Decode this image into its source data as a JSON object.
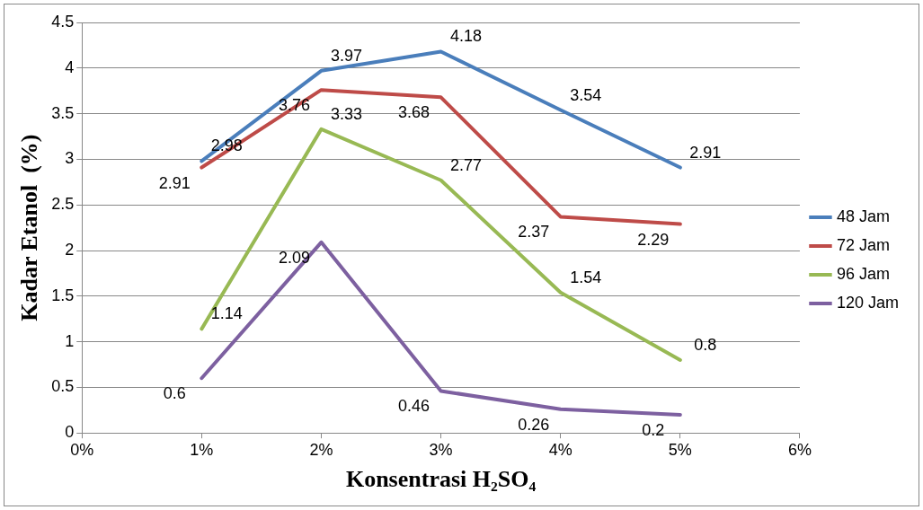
{
  "chart_data": {
    "type": "line",
    "xlabel": "Konsentrasi H₂SO₄",
    "ylabel": "Kadar Etanol  (%)",
    "x": [
      1,
      2,
      3,
      4,
      5
    ],
    "series": [
      {
        "name": "48 Jam",
        "color": "#4a7ebb",
        "values": [
          2.98,
          3.97,
          4.18,
          3.54,
          2.91
        ]
      },
      {
        "name": "72 Jam",
        "color": "#be4b48",
        "values": [
          2.91,
          3.76,
          3.68,
          2.37,
          2.29
        ]
      },
      {
        "name": "96 Jam",
        "color": "#98b954",
        "values": [
          1.14,
          3.33,
          2.77,
          1.54,
          0.8
        ]
      },
      {
        "name": "120 Jam",
        "color": "#7d60a0",
        "values": [
          0.6,
          2.09,
          0.46,
          0.26,
          0.2
        ]
      }
    ],
    "xlim": [
      0,
      6
    ],
    "xticks": [
      {
        "value": 0,
        "label": "0%"
      },
      {
        "value": 1,
        "label": "1%"
      },
      {
        "value": 2,
        "label": "2%"
      },
      {
        "value": 3,
        "label": "3%"
      },
      {
        "value": 4,
        "label": "4%"
      },
      {
        "value": 5,
        "label": "5%"
      },
      {
        "value": 6,
        "label": "6%"
      }
    ],
    "ylim": [
      0,
      4.5
    ],
    "yticks": [
      0,
      0.5,
      1,
      1.5,
      2,
      2.5,
      3,
      3.5,
      4,
      4.5
    ],
    "grid": "y",
    "legend": "right",
    "marker": "none",
    "line_style": "solid",
    "data_labels": true
  }
}
